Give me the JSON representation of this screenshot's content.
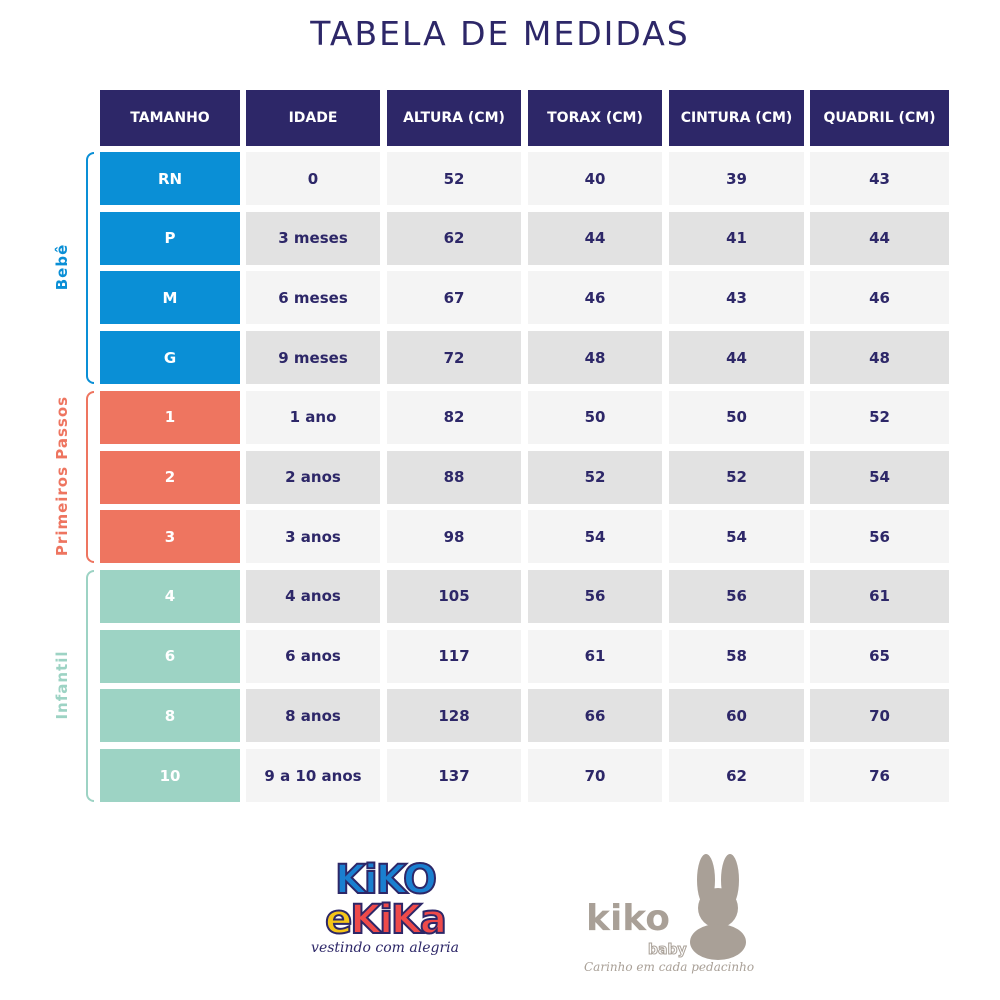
{
  "title": "TABELA DE MEDIDAS",
  "headers": [
    "TAMANHO",
    "IDADE",
    "ALTURA (CM)",
    "TORAX (CM)",
    "CINTURA (CM)",
    "QUADRIL (CM)"
  ],
  "rows": [
    [
      "RN",
      "0",
      "52",
      "40",
      "39",
      "43"
    ],
    [
      "P",
      "3 meses",
      "62",
      "44",
      "41",
      "44"
    ],
    [
      "M",
      "6 meses",
      "67",
      "46",
      "43",
      "46"
    ],
    [
      "G",
      "9 meses",
      "72",
      "48",
      "44",
      "48"
    ],
    [
      "1",
      "1 ano",
      "82",
      "50",
      "50",
      "52"
    ],
    [
      "2",
      "2 anos",
      "88",
      "52",
      "52",
      "54"
    ],
    [
      "3",
      "3 anos",
      "98",
      "54",
      "54",
      "56"
    ],
    [
      "4",
      "4 anos",
      "105",
      "56",
      "56",
      "61"
    ],
    [
      "6",
      "6 anos",
      "117",
      "61",
      "58",
      "65"
    ],
    [
      "8",
      "8 anos",
      "128",
      "66",
      "60",
      "70"
    ],
    [
      "10",
      "9 a 10 anos",
      "137",
      "70",
      "62",
      "76"
    ]
  ],
  "groups": [
    {
      "label": "Bebê",
      "color": "#0a8fd6",
      "first_row": 0,
      "last_row": 3
    },
    {
      "label": "Primeiros Passos",
      "color": "#ee7560",
      "first_row": 4,
      "last_row": 6
    },
    {
      "label": "Infantil",
      "color": "#9dd3c4",
      "first_row": 7,
      "last_row": 10
    }
  ],
  "colors": {
    "header": "#2d2768",
    "row_light": "#f4f4f4",
    "row_dark": "#e2e2e2"
  },
  "logos": {
    "kiko_e_kika": {
      "line1": "KiKO",
      "line2a": "e",
      "line2b": "KiKa",
      "tagline": "vestindo com alegria"
    },
    "kiko_baby": {
      "name": "kiko",
      "sub": "baby",
      "tagline": "Carinho em cada pedacinho",
      "icon": "bunny-icon"
    }
  }
}
